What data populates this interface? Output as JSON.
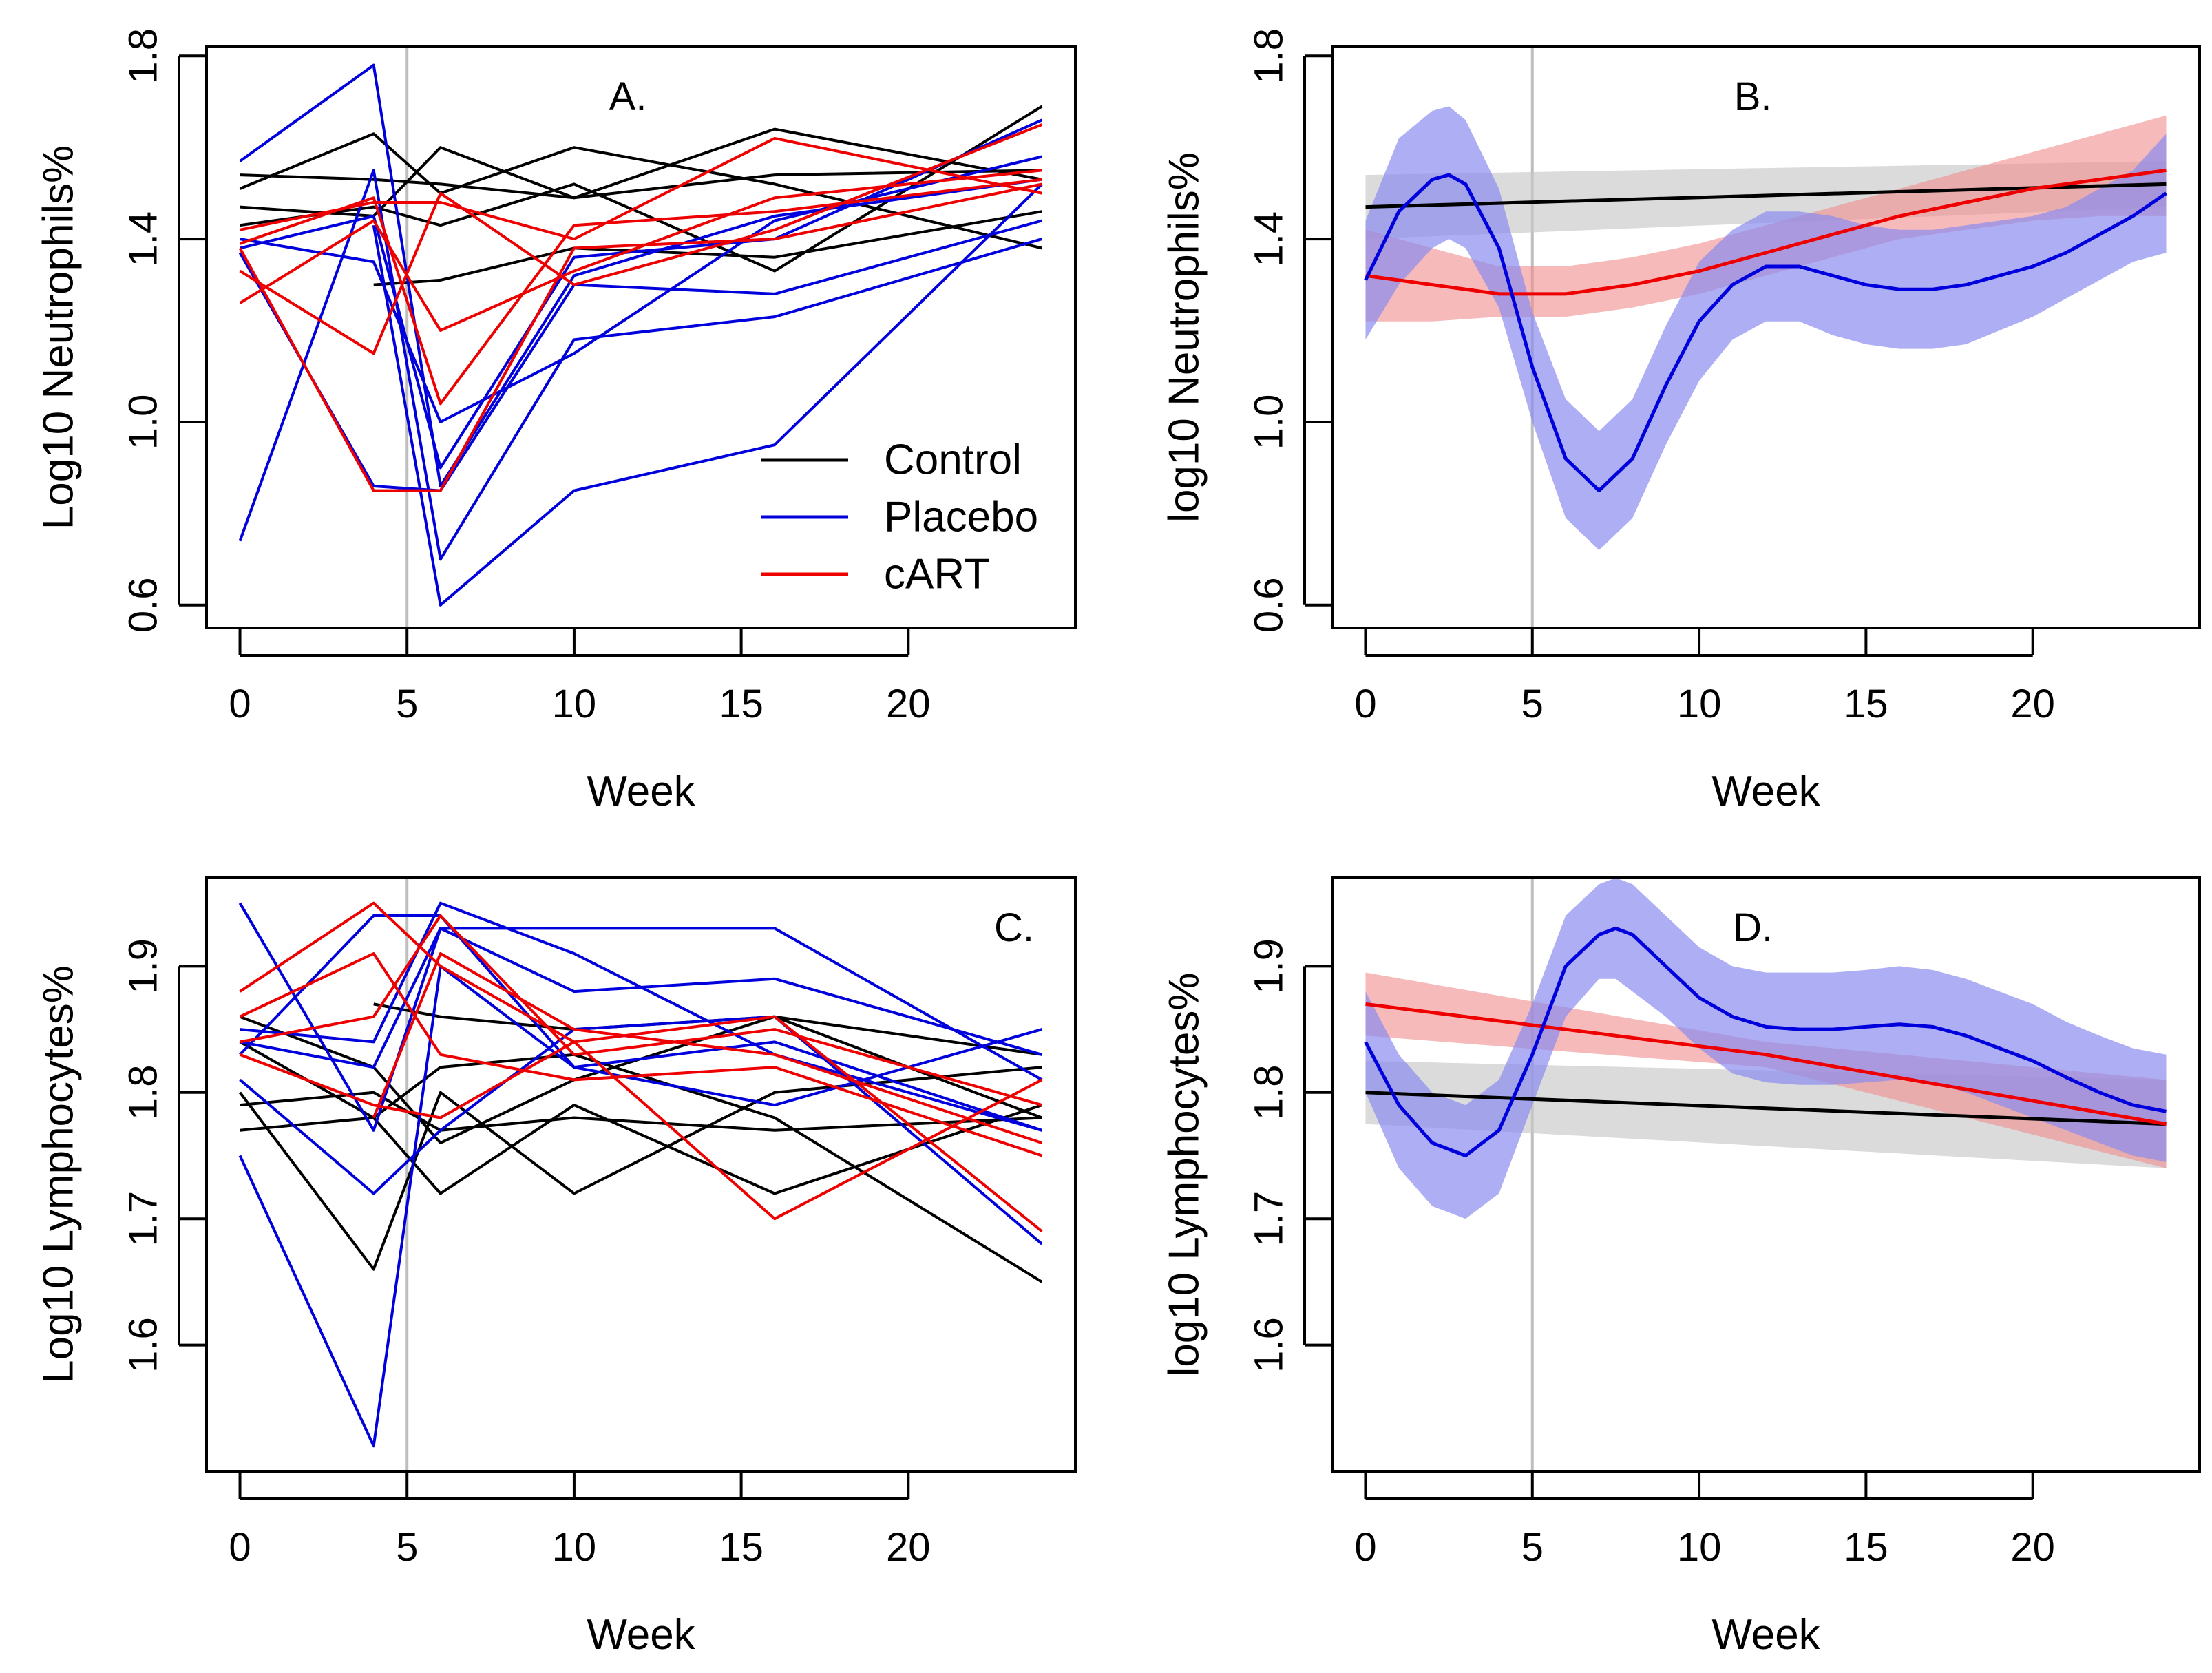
{
  "colors": {
    "control": "#000000",
    "placebo": "#0000dd",
    "cart": "#ee0000",
    "vline": "#bebebe",
    "band_control": "#c8c8c8",
    "band_placebo": "#8c8cf0",
    "band_cart": "#f08c8c"
  },
  "legend": {
    "entries": [
      {
        "label": "Control",
        "key": "control"
      },
      {
        "label": "Placebo",
        "key": "placebo"
      },
      {
        "label": "cART",
        "key": "cart"
      }
    ]
  },
  "chart_data": [
    {
      "id": "A",
      "type": "line",
      "label": "A.",
      "label_pos": "top-center",
      "xlabel": "Week",
      "ylabel": "Log10 Neutrophils%",
      "xlim": [
        -1,
        25
      ],
      "ylim": [
        0.55,
        1.82
      ],
      "xticks": [
        0,
        5,
        10,
        15,
        20
      ],
      "xtick_labels": [
        "0",
        "5",
        "10",
        "15",
        "20"
      ],
      "yticks": [
        0.6,
        1.0,
        1.4,
        1.8
      ],
      "ytick_labels": [
        "0.6",
        "1.0",
        "1.4",
        "1.8"
      ],
      "vline": 5,
      "legend": true,
      "series": [
        {
          "group": "control",
          "x": [
            0,
            4,
            6,
            10,
            16,
            24
          ],
          "y": [
            1.54,
            1.53,
            1.52,
            1.49,
            1.54,
            1.55
          ]
        },
        {
          "group": "control",
          "x": [
            0,
            4,
            6,
            10,
            16,
            24
          ],
          "y": [
            1.51,
            1.63,
            1.5,
            1.6,
            1.52,
            1.38
          ]
        },
        {
          "group": "control",
          "x": [
            0,
            4,
            6,
            10,
            16,
            24
          ],
          "y": [
            1.47,
            1.45,
            1.6,
            1.49,
            1.64,
            1.53
          ]
        },
        {
          "group": "control",
          "x": [
            0,
            4,
            6,
            10,
            16,
            24
          ],
          "y": [
            1.43,
            1.47,
            1.43,
            1.52,
            1.33,
            1.69
          ]
        },
        {
          "group": "control",
          "x": [
            4,
            6,
            10,
            16,
            24
          ],
          "y": [
            1.3,
            1.31,
            1.38,
            1.36,
            1.46
          ]
        },
        {
          "group": "placebo",
          "x": [
            0,
            4,
            6,
            10,
            16,
            24
          ],
          "y": [
            1.57,
            1.78,
            0.86,
            1.32,
            1.45,
            1.53
          ]
        },
        {
          "group": "placebo",
          "x": [
            0,
            4,
            6,
            10,
            16,
            24
          ],
          "y": [
            1.4,
            1.35,
            1.0,
            1.15,
            1.44,
            1.58
          ]
        },
        {
          "group": "placebo",
          "x": [
            0,
            4,
            6,
            10,
            16,
            24
          ],
          "y": [
            1.38,
            1.45,
            0.9,
            1.36,
            1.4,
            1.66
          ]
        },
        {
          "group": "placebo",
          "x": [
            0,
            4,
            6,
            10,
            16,
            24
          ],
          "y": [
            1.37,
            0.86,
            0.85,
            1.3,
            1.28,
            1.44
          ]
        },
        {
          "group": "placebo",
          "x": [
            0,
            4,
            6,
            10,
            16,
            24
          ],
          "y": [
            0.74,
            1.55,
            0.7,
            1.18,
            1.23,
            1.4
          ]
        },
        {
          "group": "placebo",
          "x": [
            4,
            6,
            10,
            16,
            24
          ],
          "y": [
            1.43,
            0.6,
            0.85,
            0.95,
            1.52
          ]
        },
        {
          "group": "cart",
          "x": [
            0,
            4,
            6,
            10,
            16,
            24
          ],
          "y": [
            1.42,
            1.48,
            1.48,
            1.4,
            1.62,
            1.5
          ]
        },
        {
          "group": "cart",
          "x": [
            0,
            4,
            6,
            10,
            16,
            24
          ],
          "y": [
            1.39,
            1.49,
            1.04,
            1.43,
            1.46,
            1.53
          ]
        },
        {
          "group": "cart",
          "x": [
            0,
            4,
            6,
            10,
            16,
            24
          ],
          "y": [
            1.33,
            1.15,
            1.5,
            1.3,
            1.42,
            1.65
          ]
        },
        {
          "group": "cart",
          "x": [
            0,
            4,
            6,
            10,
            16,
            24
          ],
          "y": [
            1.26,
            1.44,
            1.2,
            1.33,
            1.49,
            1.55
          ]
        },
        {
          "group": "cart",
          "x": [
            0,
            4,
            6,
            10,
            16,
            24
          ],
          "y": [
            1.38,
            0.85,
            0.85,
            1.38,
            1.4,
            1.52
          ]
        }
      ]
    },
    {
      "id": "B",
      "type": "line",
      "label": "B.",
      "label_pos": "top-center",
      "xlabel": "Week",
      "ylabel": "log10 Neutrophils%",
      "xlim": [
        -1,
        25
      ],
      "ylim": [
        0.55,
        1.82
      ],
      "xticks": [
        0,
        5,
        10,
        15,
        20
      ],
      "xtick_labels": [
        "0",
        "5",
        "10",
        "15",
        "20"
      ],
      "yticks": [
        0.6,
        1.0,
        1.4,
        1.8
      ],
      "ytick_labels": [
        "0.6",
        "1.0",
        "1.4",
        "1.8"
      ],
      "vline": 5,
      "legend": false,
      "series": [
        {
          "group": "control",
          "name": "Control fit",
          "x": [
            0,
            24
          ],
          "y": [
            1.47,
            1.52
          ],
          "lower": [
            1.4,
            1.47
          ],
          "upper": [
            1.54,
            1.57
          ]
        },
        {
          "group": "cart",
          "name": "cART fit",
          "x": [
            0,
            2,
            4,
            6,
            8,
            10,
            12,
            14,
            16,
            18,
            20,
            22,
            24
          ],
          "y": [
            1.32,
            1.3,
            1.28,
            1.28,
            1.3,
            1.33,
            1.37,
            1.41,
            1.45,
            1.48,
            1.51,
            1.53,
            1.55
          ],
          "lower": [
            1.22,
            1.22,
            1.23,
            1.23,
            1.25,
            1.28,
            1.32,
            1.36,
            1.4,
            1.42,
            1.44,
            1.45,
            1.45
          ],
          "upper": [
            1.42,
            1.38,
            1.34,
            1.34,
            1.36,
            1.39,
            1.43,
            1.47,
            1.51,
            1.55,
            1.59,
            1.63,
            1.67
          ]
        },
        {
          "group": "placebo",
          "name": "Placebo fit",
          "x": [
            0,
            1,
            2,
            2.5,
            3,
            4,
            5,
            6,
            7,
            8,
            9,
            10,
            11,
            12,
            13,
            14,
            15,
            16,
            17,
            18,
            19,
            20,
            21,
            22,
            23,
            24
          ],
          "y": [
            1.31,
            1.46,
            1.53,
            1.54,
            1.52,
            1.38,
            1.12,
            0.92,
            0.85,
            0.92,
            1.08,
            1.22,
            1.3,
            1.34,
            1.34,
            1.32,
            1.3,
            1.29,
            1.29,
            1.3,
            1.32,
            1.34,
            1.37,
            1.41,
            1.45,
            1.5
          ],
          "lower": [
            1.18,
            1.3,
            1.38,
            1.4,
            1.38,
            1.25,
            1.0,
            0.79,
            0.72,
            0.79,
            0.95,
            1.09,
            1.18,
            1.22,
            1.22,
            1.19,
            1.17,
            1.16,
            1.16,
            1.17,
            1.2,
            1.23,
            1.27,
            1.31,
            1.35,
            1.37
          ],
          "upper": [
            1.44,
            1.62,
            1.68,
            1.69,
            1.66,
            1.51,
            1.24,
            1.05,
            0.98,
            1.05,
            1.21,
            1.35,
            1.42,
            1.46,
            1.46,
            1.45,
            1.43,
            1.42,
            1.42,
            1.43,
            1.44,
            1.45,
            1.47,
            1.51,
            1.55,
            1.63
          ]
        }
      ]
    },
    {
      "id": "C",
      "type": "line",
      "label": "C.",
      "label_pos": "top-right",
      "xlabel": "Week",
      "ylabel": "Log10 Lymphocytes%",
      "xlim": [
        -1,
        25
      ],
      "ylim": [
        1.5,
        1.97
      ],
      "xticks": [
        0,
        5,
        10,
        15,
        20
      ],
      "xtick_labels": [
        "0",
        "5",
        "10",
        "15",
        "20"
      ],
      "yticks": [
        1.6,
        1.7,
        1.8,
        1.9
      ],
      "ytick_labels": [
        "1.6",
        "1.7",
        "1.8",
        "1.9"
      ],
      "vline": 5,
      "legend": false,
      "series": [
        {
          "group": "control",
          "x": [
            0,
            4,
            6,
            10,
            16,
            24
          ],
          "y": [
            1.86,
            1.82,
            1.76,
            1.81,
            1.86,
            1.78
          ]
        },
        {
          "group": "control",
          "x": [
            0,
            4,
            6,
            10,
            16,
            24
          ],
          "y": [
            1.84,
            1.78,
            1.82,
            1.83,
            1.78,
            1.65
          ]
        },
        {
          "group": "control",
          "x": [
            0,
            4,
            6,
            10,
            16,
            24
          ],
          "y": [
            1.8,
            1.66,
            1.8,
            1.72,
            1.8,
            1.82
          ]
        },
        {
          "group": "control",
          "x": [
            0,
            4,
            6,
            10,
            16,
            24
          ],
          "y": [
            1.77,
            1.78,
            1.72,
            1.79,
            1.72,
            1.79
          ]
        },
        {
          "group": "control",
          "x": [
            0,
            4,
            6,
            10,
            16,
            24
          ],
          "y": [
            1.79,
            1.8,
            1.77,
            1.78,
            1.77,
            1.78
          ]
        },
        {
          "group": "control",
          "x": [
            4,
            6,
            10,
            16,
            24
          ],
          "y": [
            1.87,
            1.86,
            1.85,
            1.86,
            1.83
          ]
        },
        {
          "group": "placebo",
          "x": [
            0,
            4,
            6,
            10,
            16,
            24
          ],
          "y": [
            1.95,
            1.77,
            1.93,
            1.93,
            1.93,
            1.81
          ]
        },
        {
          "group": "placebo",
          "x": [
            0,
            4,
            6,
            10,
            16,
            24
          ],
          "y": [
            1.85,
            1.84,
            1.95,
            1.91,
            1.83,
            1.77
          ]
        },
        {
          "group": "placebo",
          "x": [
            0,
            4,
            6,
            10,
            16,
            24
          ],
          "y": [
            1.84,
            1.82,
            1.93,
            1.88,
            1.89,
            1.83
          ]
        },
        {
          "group": "placebo",
          "x": [
            0,
            4,
            6,
            10,
            16,
            24
          ],
          "y": [
            1.83,
            1.94,
            1.94,
            1.82,
            1.79,
            1.85
          ]
        },
        {
          "group": "placebo",
          "x": [
            0,
            4,
            6,
            10,
            16,
            24
          ],
          "y": [
            1.75,
            1.52,
            1.9,
            1.82,
            1.84,
            1.77
          ]
        },
        {
          "group": "placebo",
          "x": [
            0,
            4,
            6,
            10,
            16,
            24
          ],
          "y": [
            1.81,
            1.72,
            1.77,
            1.85,
            1.86,
            1.68
          ]
        },
        {
          "group": "cart",
          "x": [
            0,
            4,
            6,
            10,
            16,
            24
          ],
          "y": [
            1.88,
            1.95,
            1.9,
            1.84,
            1.86,
            1.69
          ]
        },
        {
          "group": "cart",
          "x": [
            0,
            4,
            6,
            10,
            16,
            24
          ],
          "y": [
            1.86,
            1.91,
            1.83,
            1.81,
            1.82,
            1.75
          ]
        },
        {
          "group": "cart",
          "x": [
            0,
            4,
            6,
            10,
            16,
            24
          ],
          "y": [
            1.84,
            1.86,
            1.94,
            1.83,
            1.85,
            1.79
          ]
        },
        {
          "group": "cart",
          "x": [
            0,
            4,
            6,
            10,
            16,
            24
          ],
          "y": [
            1.83,
            1.79,
            1.78,
            1.84,
            1.7,
            1.81
          ]
        },
        {
          "group": "cart",
          "x": [
            4,
            6,
            10,
            16,
            24
          ],
          "y": [
            1.78,
            1.91,
            1.85,
            1.83,
            1.76
          ]
        }
      ]
    },
    {
      "id": "D",
      "type": "line",
      "label": "D.",
      "label_pos": "top-center",
      "xlabel": "Week",
      "ylabel": "log10 Lymphocytes%",
      "xlim": [
        -1,
        25
      ],
      "ylim": [
        1.5,
        1.97
      ],
      "xticks": [
        0,
        5,
        10,
        15,
        20
      ],
      "xtick_labels": [
        "0",
        "5",
        "10",
        "15",
        "20"
      ],
      "yticks": [
        1.6,
        1.7,
        1.8,
        1.9
      ],
      "ytick_labels": [
        "1.6",
        "1.7",
        "1.8",
        "1.9"
      ],
      "vline": 5,
      "legend": false,
      "series": [
        {
          "group": "control",
          "name": "Control fit",
          "x": [
            0,
            24
          ],
          "y": [
            1.8,
            1.775
          ],
          "lower": [
            1.775,
            1.74
          ],
          "upper": [
            1.825,
            1.81
          ]
        },
        {
          "group": "cart",
          "name": "cART fit",
          "x": [
            0,
            12,
            24
          ],
          "y": [
            1.87,
            1.83,
            1.775
          ],
          "lower": [
            1.845,
            1.82,
            1.74
          ],
          "upper": [
            1.895,
            1.84,
            1.81
          ]
        },
        {
          "group": "placebo",
          "name": "Placebo fit",
          "x": [
            0,
            1,
            2,
            3,
            4,
            5,
            6,
            7,
            7.5,
            8,
            9,
            10,
            11,
            12,
            13,
            14,
            15,
            16,
            17,
            18,
            19,
            20,
            21,
            22,
            23,
            24
          ],
          "y": [
            1.84,
            1.79,
            1.76,
            1.75,
            1.77,
            1.83,
            1.9,
            1.925,
            1.93,
            1.925,
            1.9,
            1.875,
            1.86,
            1.852,
            1.85,
            1.85,
            1.852,
            1.854,
            1.852,
            1.845,
            1.835,
            1.825,
            1.812,
            1.8,
            1.79,
            1.785
          ],
          "lower": [
            1.8,
            1.74,
            1.71,
            1.7,
            1.72,
            1.79,
            1.86,
            1.89,
            1.89,
            1.88,
            1.86,
            1.835,
            1.815,
            1.808,
            1.806,
            1.806,
            1.808,
            1.81,
            1.808,
            1.8,
            1.79,
            1.78,
            1.77,
            1.76,
            1.75,
            1.745
          ],
          "upper": [
            1.88,
            1.83,
            1.8,
            1.79,
            1.81,
            1.87,
            1.94,
            1.965,
            1.97,
            1.965,
            1.94,
            1.915,
            1.9,
            1.895,
            1.895,
            1.895,
            1.897,
            1.9,
            1.897,
            1.89,
            1.88,
            1.87,
            1.856,
            1.845,
            1.835,
            1.83
          ]
        }
      ]
    }
  ]
}
